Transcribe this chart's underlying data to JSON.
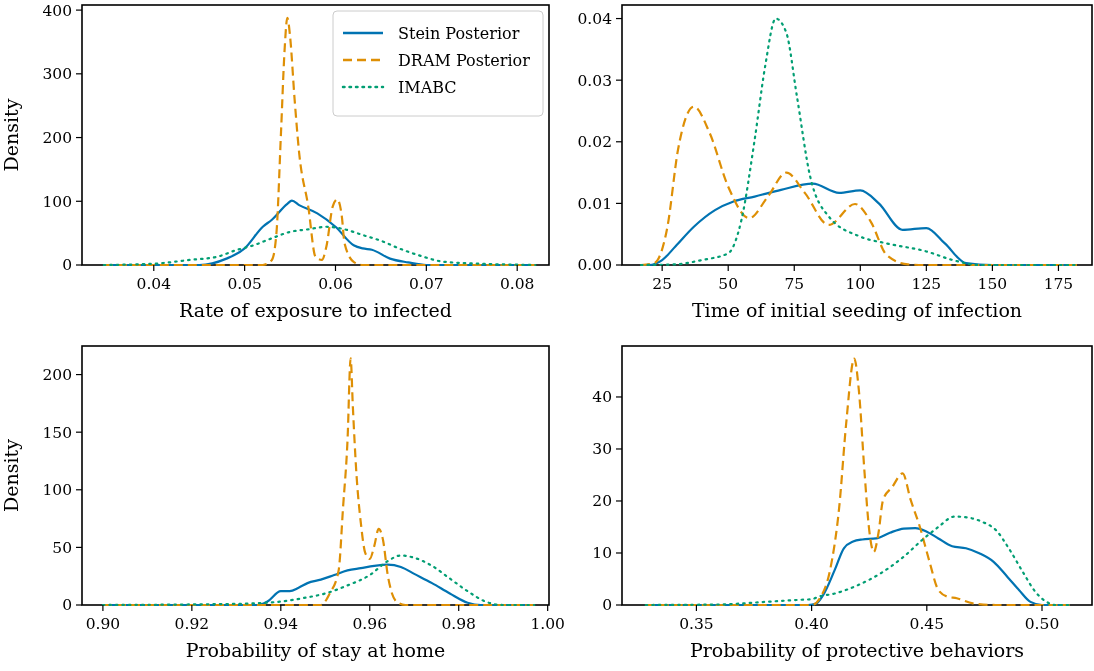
{
  "chart_data": [
    {
      "type": "line",
      "xlabel": "Rate of exposure to infected",
      "ylabel": "Density",
      "xlim": [
        0.0321,
        0.0835
      ],
      "ylim": [
        0,
        408
      ],
      "xticks": [
        0.04,
        0.05,
        0.06,
        0.07,
        0.08
      ],
      "yticks": [
        0,
        100,
        200,
        300,
        400
      ],
      "legend": "top right",
      "grid": false,
      "series": [
        {
          "name": "Stein Posterior",
          "color": "#0173b2",
          "line_style": "solid",
          "x": [
            0.0345,
            0.045,
            0.048,
            0.05,
            0.052,
            0.053,
            0.0547,
            0.0552,
            0.056,
            0.058,
            0.06,
            0.062,
            0.063,
            0.064,
            0.066,
            0.068,
            0.07,
            0.075,
            0.082
          ],
          "values": [
            0,
            0,
            10,
            26,
            60,
            71,
            96,
            101,
            94,
            81,
            60,
            31,
            26,
            24,
            10,
            4,
            0,
            0,
            0
          ]
        },
        {
          "name": "DRAM Posterior",
          "color": "#de8f05",
          "line_style": "dashed",
          "x": [
            0.0345,
            0.052,
            0.053,
            0.0535,
            0.054,
            0.0544,
            0.0547,
            0.055,
            0.0555,
            0.056,
            0.057,
            0.0578,
            0.0585,
            0.059,
            0.0597,
            0.0602,
            0.0607,
            0.061,
            0.062,
            0.063,
            0.082
          ],
          "values": [
            0,
            0,
            8,
            50,
            207,
            338,
            388,
            359,
            260,
            176,
            92,
            13,
            8,
            29,
            92,
            103,
            76,
            34,
            5,
            0,
            0
          ]
        },
        {
          "name": "IMABC",
          "color": "#029e73",
          "line_style": "dotted",
          "x": [
            0.0345,
            0.04,
            0.044,
            0.047,
            0.049,
            0.051,
            0.053,
            0.055,
            0.057,
            0.059,
            0.061,
            0.063,
            0.065,
            0.067,
            0.069,
            0.072,
            0.076,
            0.082
          ],
          "values": [
            0,
            2,
            8,
            13,
            23,
            31,
            42,
            52,
            56,
            60,
            56,
            47,
            38,
            26,
            16,
            5,
            2,
            0
          ]
        }
      ]
    },
    {
      "type": "line",
      "xlabel": "Time of initial seeding of infection",
      "xlim": [
        9.8,
        187.7
      ],
      "ylim": [
        0,
        0.0422
      ],
      "xticks": [
        25,
        50,
        75,
        100,
        125,
        150,
        175
      ],
      "yticks": [
        {
          "value": 0,
          "label": "0.00"
        },
        {
          "value": 0.01,
          "label": "0.01"
        },
        {
          "value": 0.02,
          "label": "0.02"
        },
        {
          "value": 0.03,
          "label": "0.03"
        },
        {
          "value": 0.04,
          "label": "0.04"
        }
      ],
      "grid": false,
      "series": [
        {
          "color": "#0173b2",
          "line_style": "solid",
          "x": [
            17,
            20,
            25,
            30,
            37,
            45,
            52,
            60,
            70,
            82,
            92,
            100,
            107,
            116,
            125,
            132,
            140,
            150,
            182
          ],
          "values": [
            0,
            0,
            0.0008,
            0.003,
            0.0062,
            0.0089,
            0.0103,
            0.0111,
            0.0122,
            0.0132,
            0.0117,
            0.0121,
            0.01,
            0.0057,
            0.006,
            0.0035,
            0.0003,
            0,
            0
          ]
        },
        {
          "color": "#de8f05",
          "line_style": "dashed",
          "x": [
            17,
            22,
            27,
            31,
            37,
            43,
            50,
            58,
            65,
            72,
            79,
            88,
            98,
            104,
            110,
            118,
            125,
            182
          ],
          "values": [
            0,
            0.0003,
            0.0062,
            0.0187,
            0.0257,
            0.0214,
            0.0127,
            0.0076,
            0.0111,
            0.015,
            0.0117,
            0.0065,
            0.0099,
            0.007,
            0.0016,
            0.0001,
            0,
            0
          ]
        },
        {
          "color": "#029e73",
          "line_style": "dotted",
          "x": [
            17,
            30,
            40,
            50,
            55,
            60,
            64,
            68,
            72,
            76,
            81,
            88,
            100,
            110,
            125,
            135,
            145,
            182
          ],
          "values": [
            0,
            0.0001,
            0.0008,
            0.0019,
            0.0073,
            0.0203,
            0.0323,
            0.04,
            0.0377,
            0.0274,
            0.0144,
            0.0079,
            0.0046,
            0.0035,
            0.0022,
            0.0008,
            0,
            0
          ]
        }
      ]
    },
    {
      "type": "line",
      "xlabel": "Probability of stay at home",
      "ylabel": "Density",
      "xlim": [
        0.8953,
        1.0003
      ],
      "ylim": [
        0,
        224.8
      ],
      "xticks": [
        {
          "value": 0.9,
          "label": "0.90"
        },
        0.92,
        0.94,
        0.96,
        0.98,
        {
          "value": 1,
          "label": "1.00"
        }
      ],
      "yticks": [
        0,
        50,
        100,
        150,
        200
      ],
      "grid": false,
      "series": [
        {
          "color": "#0173b2",
          "line_style": "solid",
          "x": [
            0.9,
            0.935,
            0.937,
            0.94,
            0.942,
            0.944,
            0.946,
            0.949,
            0.952,
            0.955,
            0.958,
            0.961,
            0.964,
            0.967,
            0.97,
            0.974,
            0.978,
            0.982,
            0.985,
            0.997
          ],
          "values": [
            0,
            0,
            3,
            12,
            12,
            15,
            19,
            22,
            26,
            30,
            32,
            34,
            35,
            33,
            27,
            19,
            10,
            2,
            0,
            0
          ]
        },
        {
          "color": "#de8f05",
          "line_style": "dashed",
          "x": [
            0.9,
            0.949,
            0.951,
            0.953,
            0.954,
            0.955,
            0.9557,
            0.9562,
            0.957,
            0.958,
            0.959,
            0.96,
            0.961,
            0.962,
            0.963,
            0.964,
            0.965,
            0.966,
            0.968,
            0.997
          ],
          "values": [
            0,
            0,
            10,
            30,
            85,
            143,
            214,
            172,
            114,
            71,
            45,
            40,
            51,
            66,
            56,
            27,
            10,
            3,
            0,
            0
          ]
        },
        {
          "color": "#029e73",
          "line_style": "dotted",
          "x": [
            0.9,
            0.93,
            0.94,
            0.945,
            0.95,
            0.955,
            0.96,
            0.964,
            0.967,
            0.97,
            0.974,
            0.978,
            0.982,
            0.986,
            0.99,
            0.997
          ],
          "values": [
            0,
            1,
            3,
            6,
            10,
            17,
            26,
            38,
            43,
            41,
            34,
            23,
            12,
            3,
            0,
            0
          ]
        }
      ]
    },
    {
      "type": "line",
      "xlabel": "Probability of protective behaviors",
      "xlim": [
        0.3177,
        0.5217
      ],
      "ylim": [
        0,
        49.8
      ],
      "xticks": [
        0.35,
        {
          "value": 0.4,
          "label": "0.40"
        },
        0.45,
        {
          "value": 0.5,
          "label": "0.50"
        }
      ],
      "yticks": [
        0,
        10,
        20,
        30,
        40
      ],
      "grid": false,
      "series": [
        {
          "color": "#0173b2",
          "line_style": "solid",
          "x": [
            0.328,
            0.3985,
            0.402,
            0.405,
            0.41,
            0.414,
            0.418,
            0.422,
            0.428,
            0.434,
            0.44,
            0.445,
            0.45,
            0.455,
            0.461,
            0.467,
            0.473,
            0.479,
            0.485,
            0.49,
            0.495,
            0.5,
            0.512
          ],
          "values": [
            0,
            0,
            0.3,
            1.9,
            6.7,
            10.9,
            12.2,
            12.6,
            12.8,
            13.9,
            14.7,
            14.8,
            14.1,
            12.8,
            11.3,
            10.9,
            9.9,
            8.3,
            5.4,
            2.9,
            0.6,
            0,
            0
          ]
        },
        {
          "color": "#de8f05",
          "line_style": "dashed",
          "x": [
            0.328,
            0.4,
            0.404,
            0.408,
            0.412,
            0.415,
            0.4185,
            0.4205,
            0.423,
            0.425,
            0.427,
            0.429,
            0.431,
            0.435,
            0.4395,
            0.443,
            0.447,
            0.451,
            0.455,
            0.459,
            0.463,
            0.47,
            0.48,
            0.512
          ],
          "values": [
            0,
            0,
            1.6,
            6.7,
            18.9,
            34.9,
            47.4,
            41.3,
            25.3,
            14.4,
            10.2,
            13.8,
            20.2,
            22.7,
            25.3,
            20.2,
            15,
            8.6,
            2.9,
            1.6,
            1.3,
            0.3,
            0,
            0
          ]
        },
        {
          "color": "#029e73",
          "line_style": "dotted",
          "x": [
            0.328,
            0.36,
            0.38,
            0.395,
            0.4,
            0.403,
            0.41,
            0.42,
            0.43,
            0.44,
            0.448,
            0.455,
            0.462,
            0.468,
            0.474,
            0.48,
            0.486,
            0.492,
            0.497,
            0.502,
            0.506,
            0.512
          ],
          "values": [
            0,
            0.1,
            0.6,
            1,
            1.1,
            1.6,
            2.2,
            3.8,
            6.1,
            9.3,
            12.5,
            15,
            17,
            16.8,
            16,
            14.4,
            10.6,
            6.1,
            2.6,
            0.6,
            0,
            0
          ]
        }
      ]
    }
  ]
}
